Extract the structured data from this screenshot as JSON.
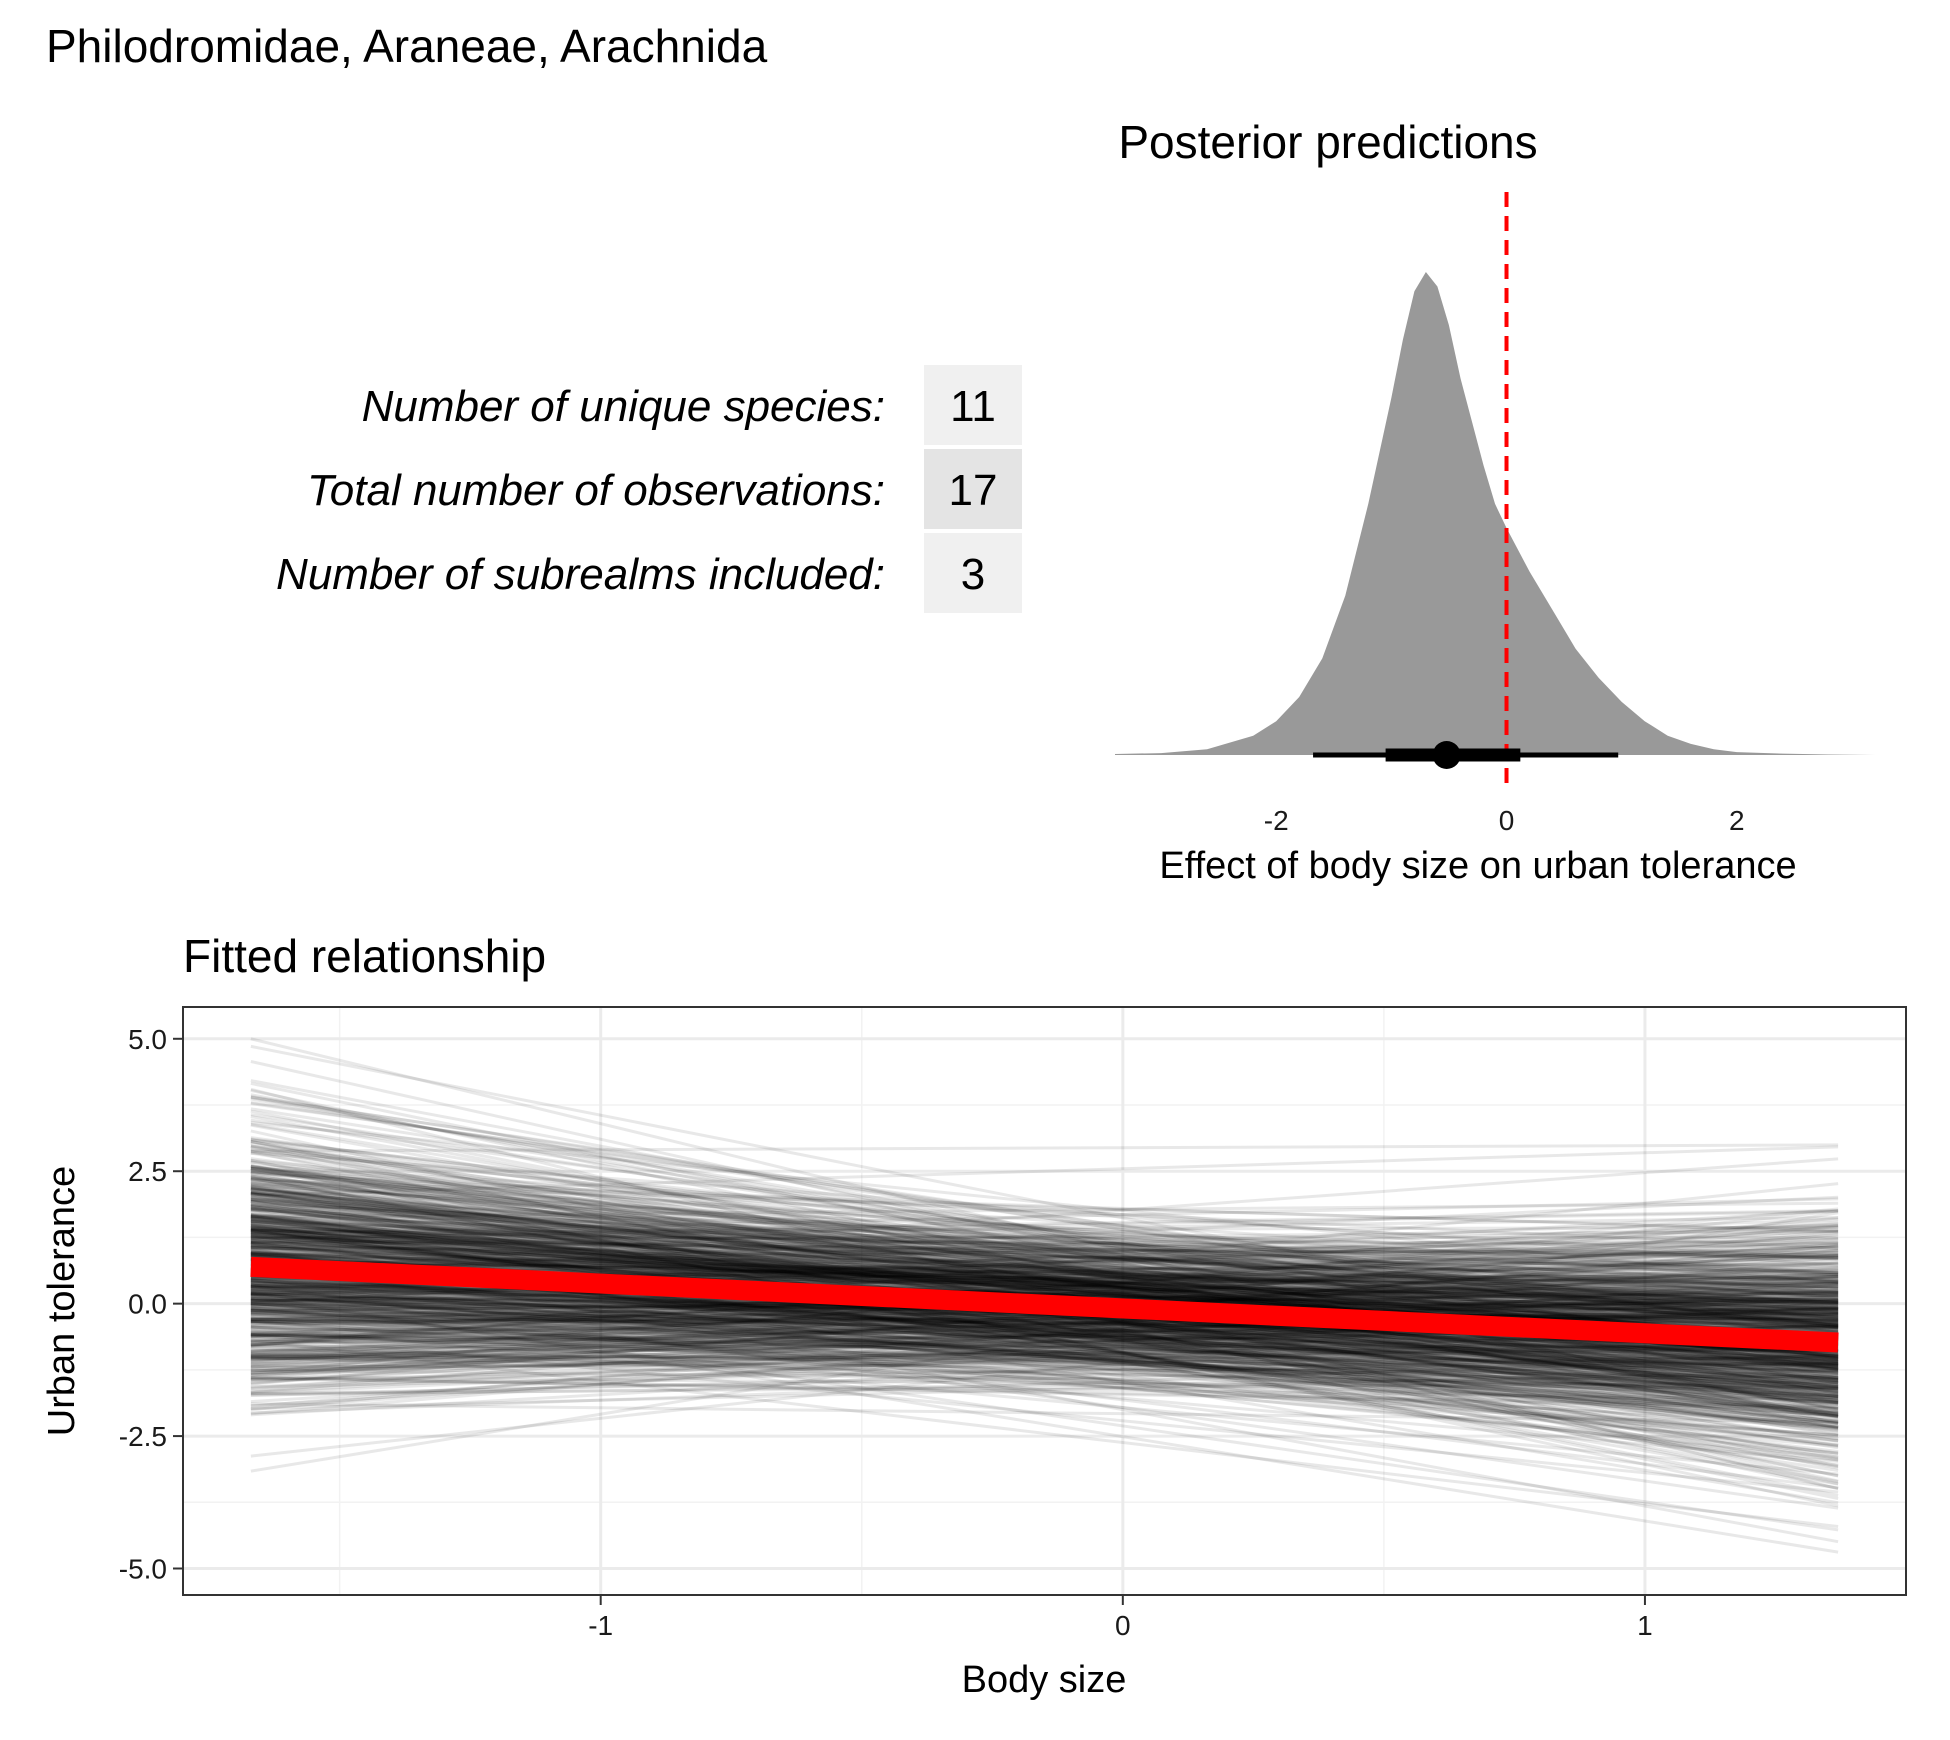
{
  "title": "Philodromidae, Araneae, Arachnida",
  "stats": {
    "rows": [
      {
        "label": "Number of unique species:",
        "value": "11"
      },
      {
        "label": "Total number of observations:",
        "value": "17"
      },
      {
        "label": "Number of subrealms included:",
        "value": "3"
      }
    ]
  },
  "chart_data": [
    {
      "type": "area",
      "title": "Posterior predictions",
      "xlabel": "Effect of body size on urban tolerance",
      "ylabel": "",
      "xlim": [
        -3.4,
        3.2
      ],
      "x_ticks": [
        "-2",
        "0",
        "2"
      ],
      "x_tick_values": [
        -2,
        0,
        2
      ],
      "density": {
        "x": [
          -3.4,
          -3.0,
          -2.6,
          -2.2,
          -2.0,
          -1.8,
          -1.6,
          -1.4,
          -1.2,
          -1.0,
          -0.9,
          -0.8,
          -0.7,
          -0.6,
          -0.5,
          -0.4,
          -0.3,
          -0.2,
          -0.1,
          0.0,
          0.2,
          0.4,
          0.6,
          0.8,
          1.0,
          1.2,
          1.4,
          1.6,
          1.8,
          2.0,
          2.4,
          2.8,
          3.2
        ],
        "y": [
          0.002,
          0.004,
          0.012,
          0.04,
          0.07,
          0.12,
          0.2,
          0.33,
          0.52,
          0.74,
          0.86,
          0.96,
          1.0,
          0.97,
          0.89,
          0.78,
          0.69,
          0.6,
          0.52,
          0.47,
          0.38,
          0.3,
          0.22,
          0.16,
          0.11,
          0.07,
          0.04,
          0.023,
          0.012,
          0.006,
          0.003,
          0.001,
          0.0
        ]
      },
      "point_estimate": -0.52,
      "interval_66": [
        -1.05,
        0.12
      ],
      "interval_95": [
        -1.68,
        0.97
      ],
      "reference_line": 0,
      "fill_color": "#999999",
      "reference_color": "#ff0000"
    },
    {
      "type": "line",
      "title": "Fitted relationship",
      "xlabel": "Body size",
      "ylabel": "Urban tolerance",
      "xlim": [
        -1.8,
        1.5
      ],
      "ylim": [
        -5.5,
        5.6
      ],
      "x_ticks": [
        "-1",
        "0",
        "1"
      ],
      "x_tick_values": [
        -1,
        0,
        1
      ],
      "y_ticks": [
        "5.0",
        "2.5",
        "0.0",
        "-2.5",
        "-5.0"
      ],
      "y_tick_values": [
        5,
        2.5,
        0,
        -2.5,
        -5
      ],
      "x_range": [
        -1.67,
        1.37
      ],
      "grid": true,
      "mean_fit": {
        "intercept": -0.09,
        "slope": -0.47,
        "color": "#ff0000"
      },
      "posterior_draws": 800,
      "draw_color": "#000000"
    }
  ]
}
